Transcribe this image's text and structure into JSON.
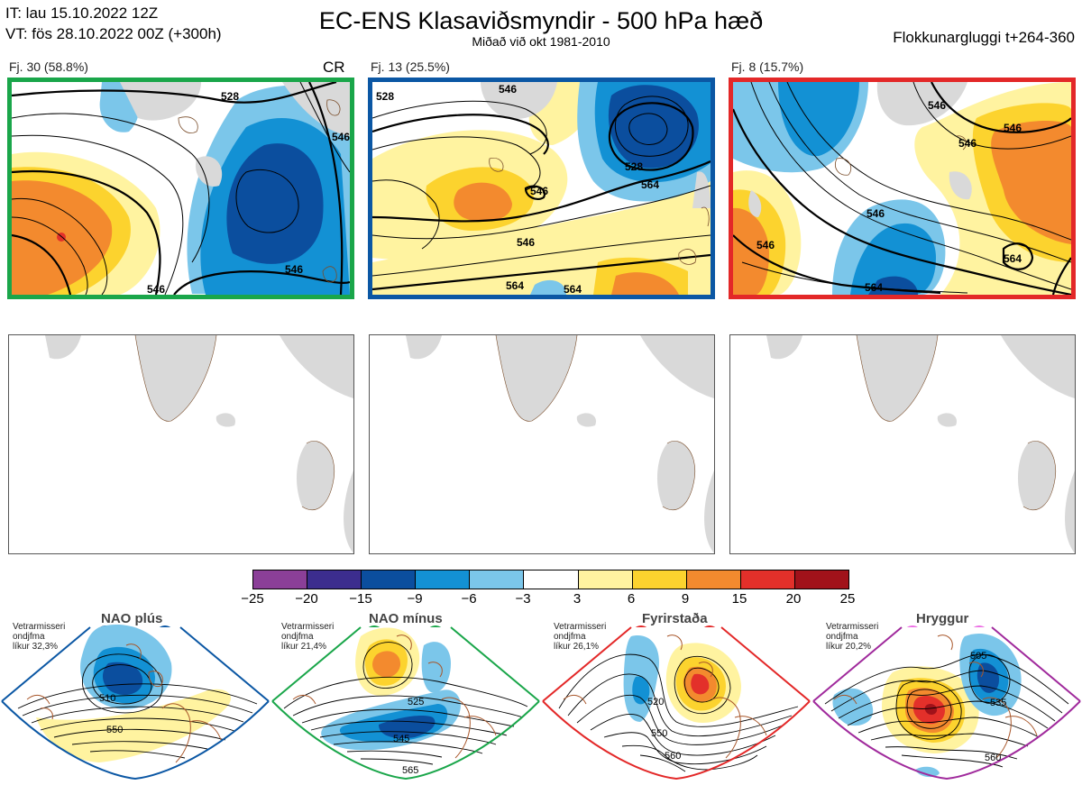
{
  "header": {
    "it_line": "IT: lau 15.10.2022 12Z",
    "vt_line": "VT: fös 28.10.2022 00Z  (+300h)",
    "title": "EC-ENS Klasaviðsmyndir - 500 hPa hæð",
    "subtitle": "Miðað við okt 1981-2010",
    "window": "Flokkunargluggi t+264-360"
  },
  "clusters": [
    {
      "label": "Fj. 30 (58.8%)",
      "border_color": "#1aa64a",
      "tag": "CR"
    },
    {
      "label": "Fj. 13 (25.5%)",
      "border_color": "#0b57a4",
      "tag": ""
    },
    {
      "label": "Fj. 8 (15.7%)",
      "border_color": "#e32828",
      "tag": ""
    }
  ],
  "contour_labels": {
    "c1": [
      "528",
      "546",
      "546",
      "546"
    ],
    "c2": [
      "528",
      "528",
      "546",
      "546",
      "564",
      "564",
      "546",
      "564"
    ],
    "c3": [
      "546",
      "546",
      "546",
      "546",
      "546",
      "564",
      "564"
    ]
  },
  "colorbar": {
    "ticks": [
      "−25",
      "−20",
      "−15",
      "−9",
      "−6",
      "−3",
      "3",
      "6",
      "9",
      "15",
      "20",
      "25"
    ],
    "colors": [
      "#8b3f98",
      "#3c2d8e",
      "#0b4e9e",
      "#1391d4",
      "#7bc6ea",
      "#ffffff",
      "#fff3a0",
      "#fcd32e",
      "#f38a2e",
      "#e3302a",
      "#a1121a"
    ]
  },
  "regimes": [
    {
      "name": "NAO plús",
      "info": [
        "Vetrarmisseri",
        "ondjfma",
        "líkur 32,3%"
      ],
      "color": "#0b57a4",
      "labels": [
        "510",
        "550"
      ]
    },
    {
      "name": "NAO mínus",
      "info": [
        "Vetrarmisseri",
        "ondjfma",
        "líkur 21,4%"
      ],
      "color": "#1aa64a",
      "labels": [
        "525",
        "545",
        "565"
      ]
    },
    {
      "name": "Fyrirstaða",
      "info": [
        "Vetrarmisseri",
        "ondjfma",
        "líkur 26,1%"
      ],
      "color": "#e32828",
      "labels": [
        "520",
        "550",
        "560"
      ]
    },
    {
      "name": "Hryggur",
      "info": [
        "Vetrarmisseri",
        "ondjfma",
        "líkur 20,2%"
      ],
      "color": "#a02a9c",
      "labels": [
        "505",
        "535",
        "560"
      ]
    }
  ]
}
